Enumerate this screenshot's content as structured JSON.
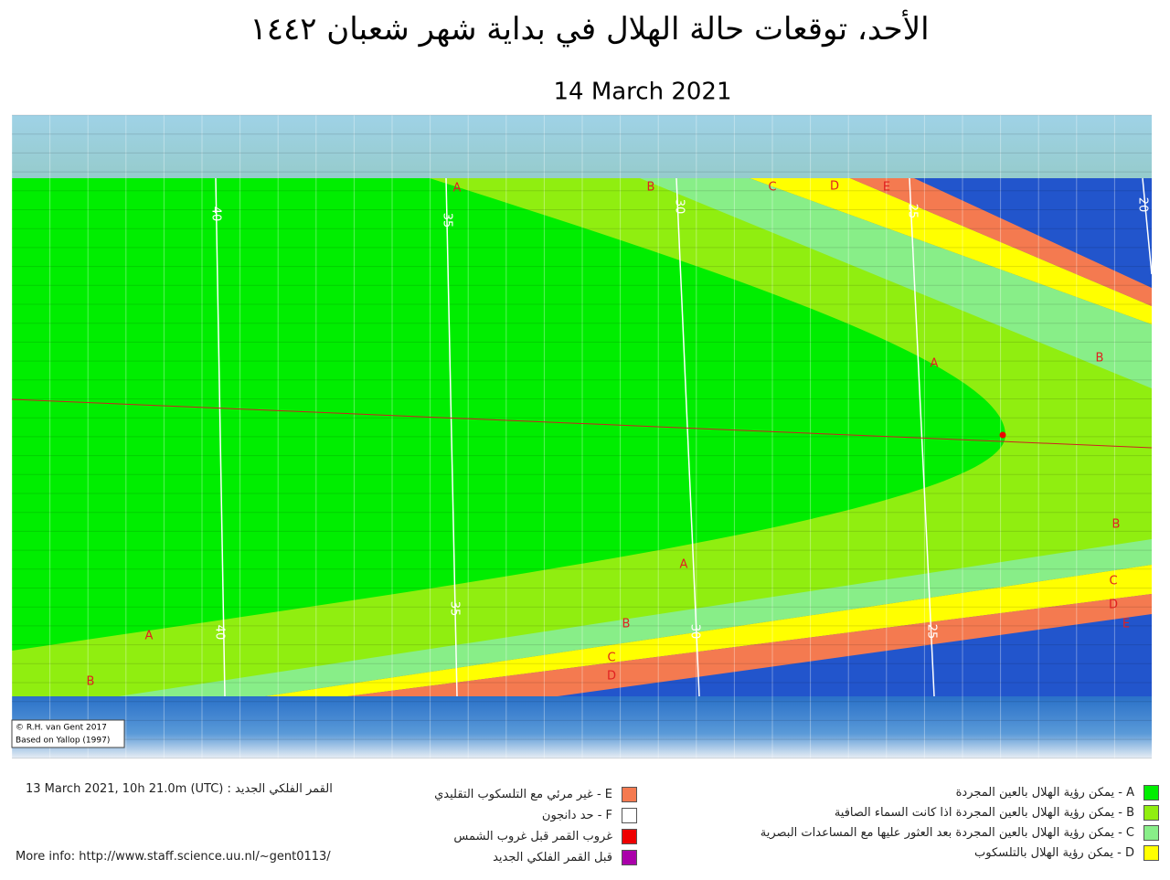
{
  "title": "الأحد، توقعات حالة الهلال في بداية شهر شعبان ١٤٤٢",
  "date": "14 March 2021",
  "map": {
    "credit": [
      "© R.H. van Gent 2017",
      "Based on Yallop (1997)"
    ],
    "zone_labels": [
      "A",
      "B",
      "C",
      "D",
      "E",
      "A",
      "B",
      "B",
      "C",
      "D",
      "E",
      "A",
      "B",
      "C",
      "D",
      "A",
      "B"
    ],
    "contour_labels": [
      "40",
      "35",
      "30",
      "25",
      "20",
      "40",
      "35",
      "30",
      "25"
    ],
    "zone_colors": {
      "A": "#00ee00",
      "B": "#90ee10",
      "C": "#88ee88",
      "D": "#ffff00",
      "E": "#f47a50"
    }
  },
  "info": {
    "new_moon": "13 March 2021, 10h 21.0m (UTC) : القمر الفلكي الجديد",
    "more_info": "More info: http://www.staff.science.uu.nl/~gent0113/"
  },
  "legend_right": [
    {
      "label": "A - يمكن رؤية الهلال بالعين المجردة",
      "color": "#00ee00"
    },
    {
      "label": "B - يمكن رؤية الهلال بالعين المجردة اذا كانت السماء الصافية",
      "color": "#90ee10"
    },
    {
      "label": "C - يمكن رؤية الهلال بالعين المجردة بعد العثور عليها مع المساعدات البصرية",
      "color": "#88ee88"
    },
    {
      "label": "D - يمكن رؤية الهلال بالتلسكوب",
      "color": "#ffff00"
    }
  ],
  "legend_middle": [
    {
      "label": "E - غير مرئي مع التلسكوب التقليدي",
      "color": "#f47a50"
    },
    {
      "label": "F - حد دانجون",
      "color": "#ffffff"
    },
    {
      "label": "غروب القمر قبل غروب الشمس",
      "color": "#ee0000"
    },
    {
      "label": "قبل القمر الفلكي الجديد",
      "color": "#aa00aa"
    }
  ]
}
